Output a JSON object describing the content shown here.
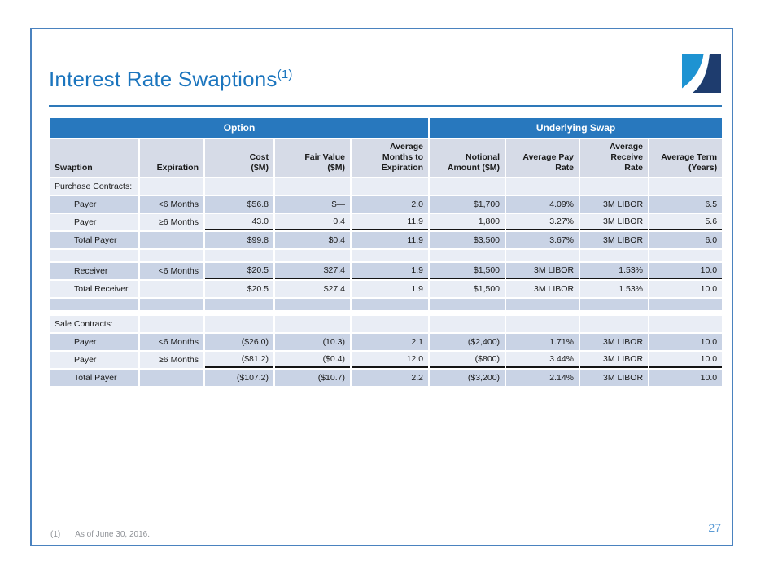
{
  "slide": {
    "title": "Interest Rate Swaptions",
    "title_superscript": "(1)",
    "footnote_marker": "(1)",
    "footnote_text": "As of June 30, 2016.",
    "page_number": "27"
  },
  "colors": {
    "accent_blue": "#2878be",
    "title_blue": "#1b75be",
    "frame_blue": "#4a82bf",
    "stripe_dark": "#c9d3e5",
    "stripe_light": "#e9edf5",
    "header_bg": "#d6dbe7",
    "logo_bright_blue": "#1e93d2",
    "logo_navy": "#1e3c6e",
    "page_number_blue": "#5b9bd5"
  },
  "table": {
    "groups": [
      {
        "label": "Option",
        "span": 5
      },
      {
        "label": "Underlying Swap",
        "span": 4
      }
    ],
    "columns": [
      {
        "label": "Swaption",
        "align": "left"
      },
      {
        "label": "Expiration",
        "align": "right"
      },
      {
        "label": "Cost\n($M)",
        "align": "right"
      },
      {
        "label": "Fair Value\n($M)",
        "align": "right"
      },
      {
        "label": "Average\nMonths to\nExpiration",
        "align": "right"
      },
      {
        "label": "Notional\nAmount ($M)",
        "align": "right"
      },
      {
        "label": "Average Pay\nRate",
        "align": "right"
      },
      {
        "label": "Average\nReceive\nRate",
        "align": "right"
      },
      {
        "label": "Average Term\n(Years)",
        "align": "right"
      }
    ],
    "rows": [
      {
        "type": "section",
        "shade": "light",
        "cells": [
          "Purchase Contracts:",
          "",
          "",
          "",
          "",
          "",
          "",
          "",
          ""
        ]
      },
      {
        "type": "data",
        "shade": "dark",
        "rule": false,
        "cells": [
          "Payer",
          "<6 Months",
          "$56.8",
          "$—",
          "2.0",
          "$1,700",
          "4.09%",
          "3M LIBOR",
          "6.5"
        ]
      },
      {
        "type": "data",
        "shade": "light",
        "rule": true,
        "cells": [
          "Payer",
          "≥6 Months",
          "43.0",
          "0.4",
          "11.9",
          "1,800",
          "3.27%",
          "3M LIBOR",
          "5.6"
        ]
      },
      {
        "type": "data",
        "shade": "dark",
        "rule": false,
        "cells": [
          "Total Payer",
          "",
          "$99.8",
          "$0.4",
          "11.9",
          "$3,500",
          "3.67%",
          "3M LIBOR",
          "6.0"
        ]
      },
      {
        "type": "empty",
        "shade": "light",
        "cells": [
          "",
          "",
          "",
          "",
          "",
          "",
          "",
          "",
          ""
        ]
      },
      {
        "type": "data",
        "shade": "dark",
        "rule": true,
        "cells": [
          "Receiver",
          "<6 Months",
          "$20.5",
          "$27.4",
          "1.9",
          "$1,500",
          "3M LIBOR",
          "1.53%",
          "10.0"
        ]
      },
      {
        "type": "data",
        "shade": "light",
        "rule": false,
        "cells": [
          "Total Receiver",
          "",
          "$20.5",
          "$27.4",
          "1.9",
          "$1,500",
          "3M LIBOR",
          "1.53%",
          "10.0"
        ]
      },
      {
        "type": "empty",
        "shade": "dark",
        "cells": [
          "",
          "",
          "",
          "",
          "",
          "",
          "",
          "",
          ""
        ]
      },
      {
        "type": "gap"
      },
      {
        "type": "section",
        "shade": "light",
        "cells": [
          "Sale Contracts:",
          "",
          "",
          "",
          "",
          "",
          "",
          "",
          ""
        ]
      },
      {
        "type": "data",
        "shade": "dark",
        "rule": false,
        "cells": [
          "Payer",
          "<6 Months",
          "($26.0)",
          "(10.3)",
          "2.1",
          "($2,400)",
          "1.71%",
          "3M LIBOR",
          "10.0"
        ]
      },
      {
        "type": "data",
        "shade": "light",
        "rule": true,
        "cells": [
          "Payer",
          "≥6 Months",
          "($81.2)",
          "($0.4)",
          "12.0",
          "($800)",
          "3.44%",
          "3M LIBOR",
          "10.0"
        ]
      },
      {
        "type": "data",
        "shade": "dark",
        "rule": false,
        "cells": [
          "Total Payer",
          "",
          "($107.2)",
          "($10.7)",
          "2.2",
          "($3,200)",
          "2.14%",
          "3M LIBOR",
          "10.0"
        ]
      }
    ]
  }
}
